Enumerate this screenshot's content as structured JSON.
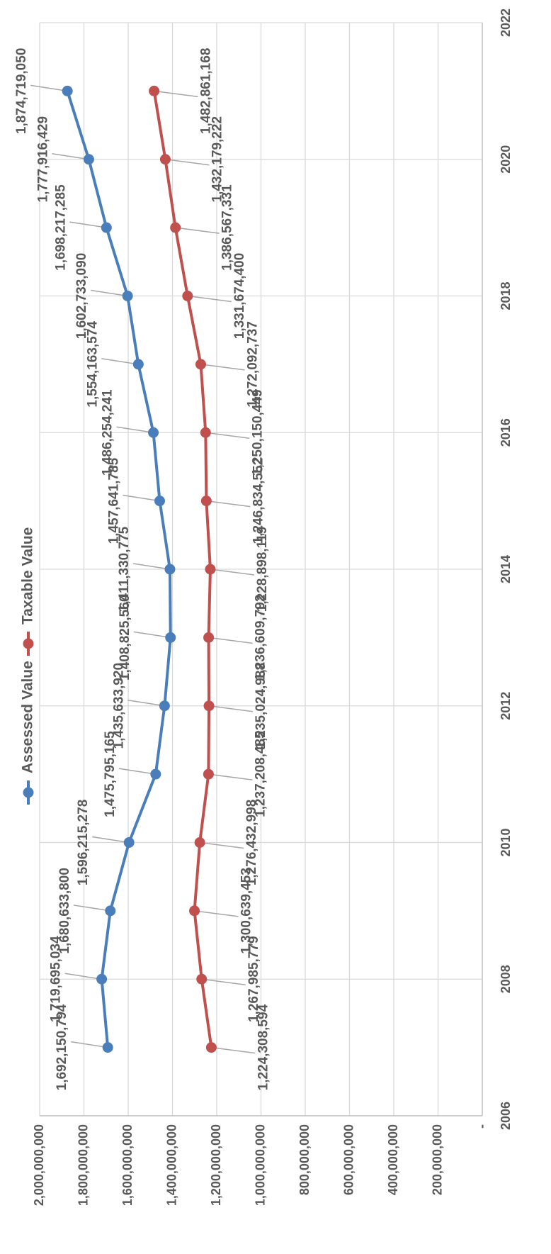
{
  "chart_data": {
    "type": "line",
    "orientation": "rotated-90-clockwise",
    "title": "",
    "xlabel": "",
    "ylabel": "",
    "xlim": [
      2006,
      2022
    ],
    "x_ticks": [
      "2006",
      "2008",
      "2010",
      "2012",
      "2014",
      "2016",
      "2018",
      "2020",
      "2022"
    ],
    "ylim": [
      0,
      2000000000
    ],
    "y_ticks": [
      "-",
      "200,000,000",
      "400,000,000",
      "600,000,000",
      "800,000,000",
      "1,000,000,000",
      "1,200,000,000",
      "1,400,000,000",
      "1,600,000,000",
      "1,800,000,000",
      "2,000,000,000"
    ],
    "grid": true,
    "legend_position": "bottom",
    "x": [
      2007,
      2008,
      2009,
      2010,
      2011,
      2012,
      2013,
      2014,
      2015,
      2016,
      2017,
      2018,
      2019,
      2020,
      2021
    ],
    "series": [
      {
        "name": "Assessed Value",
        "color": "#4a7ebb",
        "values": [
          1692150794,
          1719695034,
          1680633800,
          1596215278,
          1475795165,
          1435633920,
          1408825560,
          1411330775,
          1457641785,
          1486254241,
          1554163574,
          1602733090,
          1698217285,
          1777916429,
          1874719050
        ],
        "labels": [
          "1,692,150,794",
          "1,719,695,034",
          "1,680,633,800",
          "1,596,215,278",
          "1,475,795,165",
          "1,435,633,920",
          "1,408,825,560",
          "1,411,330,775",
          "1,457,641,785",
          "1,486,254,241",
          "1,554,163,574",
          "1,602,733,090",
          "1,698,217,285",
          "1,777,916,429",
          "1,874,719,050"
        ]
      },
      {
        "name": "Taxable Value",
        "color": "#c0504d",
        "values": [
          1224308594,
          1267985779,
          1300639453,
          1276432998,
          1237208485,
          1235024988,
          1236609792,
          1228898119,
          1246834552,
          1250150449,
          1272092737,
          1331674400,
          1386567331,
          1432179222,
          1482861168
        ],
        "labels": [
          "1,224,308,594",
          "1,267,985,779",
          "1,300,639,453",
          "1,276,432,998",
          "1,237,208,485",
          "1,235,024,988",
          "1,236,609,792",
          "1,228,898,119",
          "1,246,834,552",
          "1,250,150,449",
          "1,272,092,737",
          "1,331,674,400",
          "1,386,567,331",
          "1,432,179,222",
          "1,482,861,168"
        ]
      }
    ]
  }
}
